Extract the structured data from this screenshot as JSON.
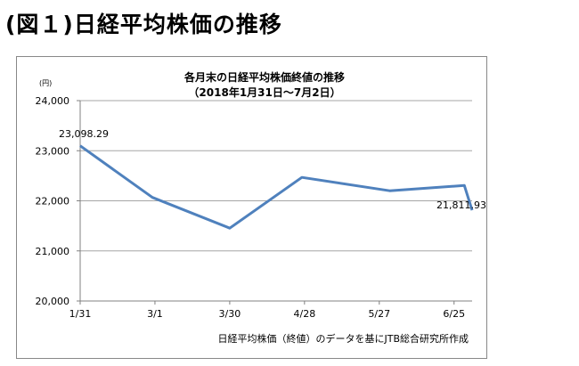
{
  "heading": "(図１)日経平均株価の推移",
  "chart_data": {
    "type": "line",
    "title": "各月末の日経平均株価終値の推移",
    "subtitle": "（2018年1月31日～7月2日）",
    "y_unit": "(円)",
    "x_tick_labels": [
      "1/31",
      "3/1",
      "3/30",
      "4/28",
      "5/27",
      "6/25"
    ],
    "y_tick_labels": [
      "24,000",
      "23,000",
      "22,000",
      "21,000",
      "20,000"
    ],
    "ylim": [
      20000,
      24000
    ],
    "y_ticks": [
      20000,
      21000,
      22000,
      23000,
      24000
    ],
    "x": [
      "2018-01-31",
      "2018-02-28",
      "2018-03-30",
      "2018-04-27",
      "2018-05-31",
      "2018-06-29",
      "2018-07-02"
    ],
    "series": [
      {
        "values": [
          23098.29,
          22068,
          21454,
          22467,
          22201,
          22305,
          21811.93
        ]
      }
    ],
    "data_labels": [
      "23,098.29",
      "21,811.93"
    ],
    "grid": true,
    "legend": "none",
    "line_color": "#4f81bd",
    "source_note": "日経平均株価（終値）のデータを基にJTB総合研究所作成"
  }
}
